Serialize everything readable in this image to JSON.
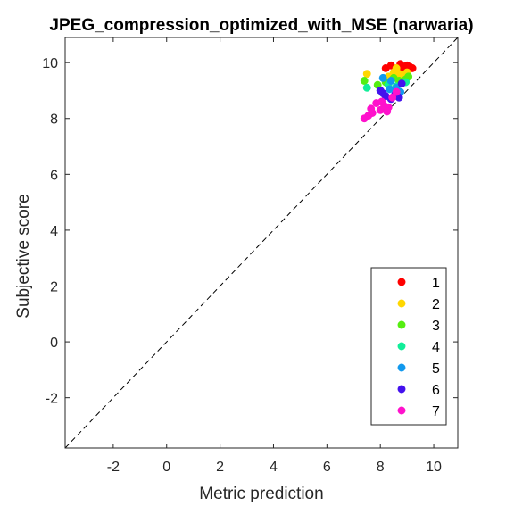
{
  "chart_data": {
    "type": "scatter",
    "title": "JPEG_compression_optimized_with_MSE (narwaria)",
    "xlabel": "Metric prediction",
    "ylabel": "Subjective score",
    "xlim": [
      -3.8,
      10.9
    ],
    "ylim": [
      -3.8,
      10.9
    ],
    "xticks": [
      -2,
      0,
      2,
      4,
      6,
      8,
      10
    ],
    "yticks": [
      -2,
      0,
      2,
      4,
      6,
      8,
      10
    ],
    "grid": false,
    "legend_position": "bottom-right",
    "reference_line": "y = x (dashed)",
    "series": [
      {
        "name": "1",
        "color": "#ff0000",
        "points": [
          [
            8.2,
            9.8
          ],
          [
            8.4,
            9.9
          ],
          [
            8.6,
            9.75
          ],
          [
            8.75,
            9.95
          ],
          [
            8.9,
            9.8
          ],
          [
            9.0,
            9.9
          ],
          [
            9.1,
            9.85
          ],
          [
            9.2,
            9.8
          ],
          [
            8.8,
            9.7
          ]
        ]
      },
      {
        "name": "2",
        "color": "#ffd700",
        "points": [
          [
            7.5,
            9.6
          ],
          [
            8.3,
            9.5
          ],
          [
            8.5,
            9.65
          ],
          [
            8.7,
            9.6
          ],
          [
            8.85,
            9.55
          ],
          [
            9.0,
            9.65
          ],
          [
            8.6,
            9.8
          ]
        ]
      },
      {
        "name": "3",
        "color": "#55ee11",
        "points": [
          [
            7.4,
            9.35
          ],
          [
            7.9,
            9.2
          ],
          [
            8.2,
            9.3
          ],
          [
            8.5,
            9.45
          ],
          [
            8.7,
            9.35
          ],
          [
            8.95,
            9.4
          ],
          [
            9.05,
            9.5
          ]
        ]
      },
      {
        "name": "4",
        "color": "#11ee99",
        "points": [
          [
            7.5,
            9.1
          ],
          [
            8.0,
            9.0
          ],
          [
            8.3,
            9.2
          ],
          [
            8.6,
            9.15
          ],
          [
            8.8,
            9.25
          ],
          [
            8.95,
            9.3
          ]
        ]
      },
      {
        "name": "5",
        "color": "#1199ee",
        "points": [
          [
            8.1,
            9.45
          ],
          [
            8.35,
            9.05
          ],
          [
            8.6,
            9.1
          ],
          [
            8.75,
            8.95
          ],
          [
            8.4,
            9.35
          ]
        ]
      },
      {
        "name": "6",
        "color": "#4411ee",
        "points": [
          [
            8.0,
            9.0
          ],
          [
            8.2,
            8.8
          ],
          [
            8.4,
            8.7
          ],
          [
            8.55,
            8.85
          ],
          [
            8.7,
            8.75
          ],
          [
            8.8,
            9.25
          ],
          [
            8.1,
            8.9
          ]
        ]
      },
      {
        "name": "7",
        "color": "#ff11cc",
        "points": [
          [
            7.4,
            8.0
          ],
          [
            7.55,
            8.1
          ],
          [
            7.7,
            8.2
          ],
          [
            7.85,
            8.55
          ],
          [
            8.0,
            8.3
          ],
          [
            8.15,
            8.45
          ],
          [
            8.3,
            8.4
          ],
          [
            8.45,
            8.75
          ],
          [
            8.6,
            8.95
          ],
          [
            8.05,
            8.6
          ],
          [
            8.25,
            8.25
          ],
          [
            7.65,
            8.35
          ]
        ]
      }
    ]
  }
}
